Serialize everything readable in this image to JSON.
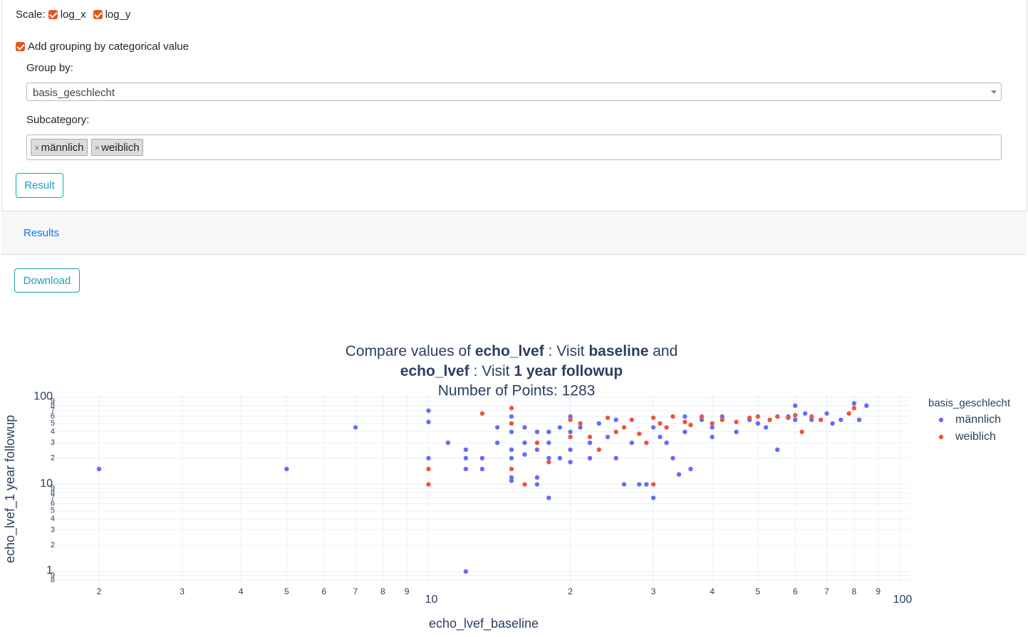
{
  "scale": {
    "label": "Scale:",
    "options": [
      {
        "label": "log_x",
        "checked": true
      },
      {
        "label": "log_y",
        "checked": true
      }
    ]
  },
  "grouping": {
    "label": "Add grouping by categorical value",
    "checked": true
  },
  "group_by": {
    "label": "Group by:",
    "value": "basis_geschlecht"
  },
  "subcategory": {
    "label": "Subcategory:",
    "remove_symbol": "×",
    "tags": [
      "männlich",
      "weiblich"
    ]
  },
  "result_button": "Result",
  "results_tab": "Results",
  "download_button": "Download",
  "chart_data": {
    "type": "scatter",
    "title": [
      [
        {
          "text": "Compare values of ",
          "bold": false
        },
        {
          "text": "echo_lvef",
          "bold": true
        },
        {
          "text": " : Visit ",
          "bold": false
        },
        {
          "text": "baseline",
          "bold": true
        },
        {
          "text": " and",
          "bold": false
        }
      ],
      [
        {
          "text": "echo_lvef",
          "bold": true
        },
        {
          "text": " : Visit ",
          "bold": false
        },
        {
          "text": "1 year followup",
          "bold": true
        }
      ]
    ],
    "subtitle": "Number of Points: 1283",
    "x_label": "echo_lvef_baseline",
    "y_label": "echo_lvef_1 year followup",
    "log_x": true,
    "log_y": true,
    "grid": true,
    "legend": "right",
    "legend_title": "basis_geschlecht",
    "xlim": [
      1.6,
      105
    ],
    "ylim": [
      0.7,
      110
    ],
    "xticks": [
      2,
      3,
      4,
      5,
      6,
      7,
      8,
      9,
      10,
      {
        "value": 20,
        "label": "2"
      },
      {
        "value": 30,
        "label": "3"
      },
      {
        "value": 40,
        "label": "4"
      },
      {
        "value": 50,
        "label": "5"
      },
      {
        "value": 60,
        "label": "6"
      },
      {
        "value": 70,
        "label": "7"
      },
      {
        "value": 80,
        "label": "8"
      },
      {
        "value": 90,
        "label": "9"
      },
      100
    ],
    "yticks": [
      {
        "value": 0.8,
        "label": "8"
      },
      {
        "value": 0.9,
        "label": "9"
      },
      1,
      2,
      3,
      4,
      5,
      6,
      7,
      8,
      9,
      10,
      {
        "value": 20,
        "label": "2"
      },
      {
        "value": 30,
        "label": "3"
      },
      {
        "value": 40,
        "label": "4"
      },
      {
        "value": 50,
        "label": "5"
      },
      {
        "value": 60,
        "label": "6"
      },
      {
        "value": 70,
        "label": "7"
      },
      {
        "value": 80,
        "label": "8"
      },
      {
        "value": 90,
        "label": "9"
      },
      100
    ],
    "series": [
      {
        "name": "männlich",
        "color": "#636efa",
        "x": [
          2,
          5,
          7,
          10,
          10,
          10,
          11,
          12,
          12,
          12,
          12,
          13,
          13,
          14,
          14,
          15,
          15,
          15,
          15,
          15,
          15,
          16,
          16,
          16,
          17,
          17,
          17,
          17,
          18,
          18,
          18,
          18,
          19,
          19,
          20,
          20,
          20,
          20,
          21,
          22,
          22,
          23,
          24,
          25,
          25,
          26,
          27,
          28,
          29,
          30,
          30,
          31,
          32,
          33,
          34,
          35,
          35,
          36,
          38,
          40,
          40,
          42,
          45,
          48,
          50,
          52,
          55,
          58,
          60,
          60,
          63,
          65,
          70,
          72,
          75,
          80,
          82,
          85
        ],
        "y": [
          15,
          15,
          45,
          70,
          52,
          20,
          30,
          25,
          20,
          15,
          1,
          20,
          15,
          45,
          30,
          60,
          40,
          25,
          20,
          12,
          11,
          45,
          30,
          22,
          40,
          25,
          12,
          10,
          40,
          30,
          20,
          7,
          45,
          20,
          60,
          40,
          25,
          18,
          45,
          30,
          20,
          50,
          35,
          55,
          20,
          10,
          30,
          10,
          10,
          45,
          7,
          35,
          30,
          20,
          13,
          60,
          40,
          15,
          55,
          45,
          35,
          60,
          40,
          55,
          50,
          45,
          25,
          60,
          80,
          55,
          65,
          55,
          65,
          50,
          55,
          85,
          55,
          80
        ]
      },
      {
        "name": "weiblich",
        "color": "#ef553b",
        "x": [
          10,
          10,
          13,
          15,
          15,
          15,
          16,
          17,
          18,
          20,
          20,
          21,
          22,
          23,
          24,
          25,
          26,
          27,
          28,
          29,
          30,
          30,
          31,
          32,
          33,
          35,
          36,
          38,
          40,
          42,
          45,
          48,
          50,
          53,
          55,
          58,
          60,
          62,
          65,
          68,
          78,
          80
        ],
        "y": [
          15,
          10,
          65,
          75,
          50,
          15,
          10,
          30,
          18,
          35,
          55,
          50,
          35,
          25,
          58,
          40,
          45,
          55,
          38,
          30,
          58,
          10,
          50,
          45,
          60,
          52,
          48,
          60,
          50,
          55,
          52,
          58,
          60,
          55,
          60,
          58,
          62,
          40,
          60,
          55,
          65,
          75
        ]
      }
    ]
  }
}
